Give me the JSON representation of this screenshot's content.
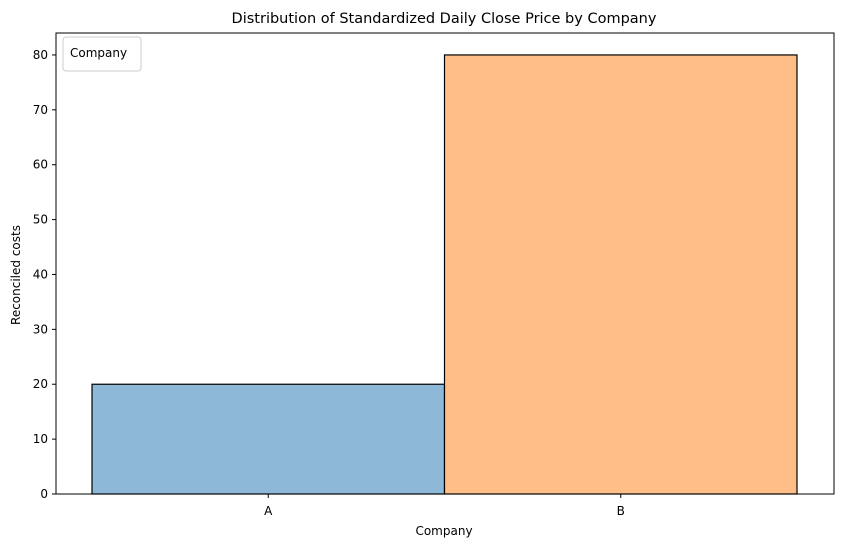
{
  "chart_data": {
    "type": "bar",
    "title": "Distribution of Standardized Daily Close Price by Company",
    "xlabel": "Company",
    "ylabel": "Reconciled costs",
    "categories": [
      "A",
      "B"
    ],
    "values": [
      20,
      80
    ],
    "colors": [
      "#8db8d8",
      "#ffbe87"
    ],
    "edge_color": "#000000",
    "ylim": [
      0,
      84
    ],
    "yticks": [
      0,
      10,
      20,
      30,
      40,
      50,
      60,
      70,
      80
    ],
    "grid": false,
    "legend": {
      "title": "Company",
      "placement": "top-left"
    }
  }
}
